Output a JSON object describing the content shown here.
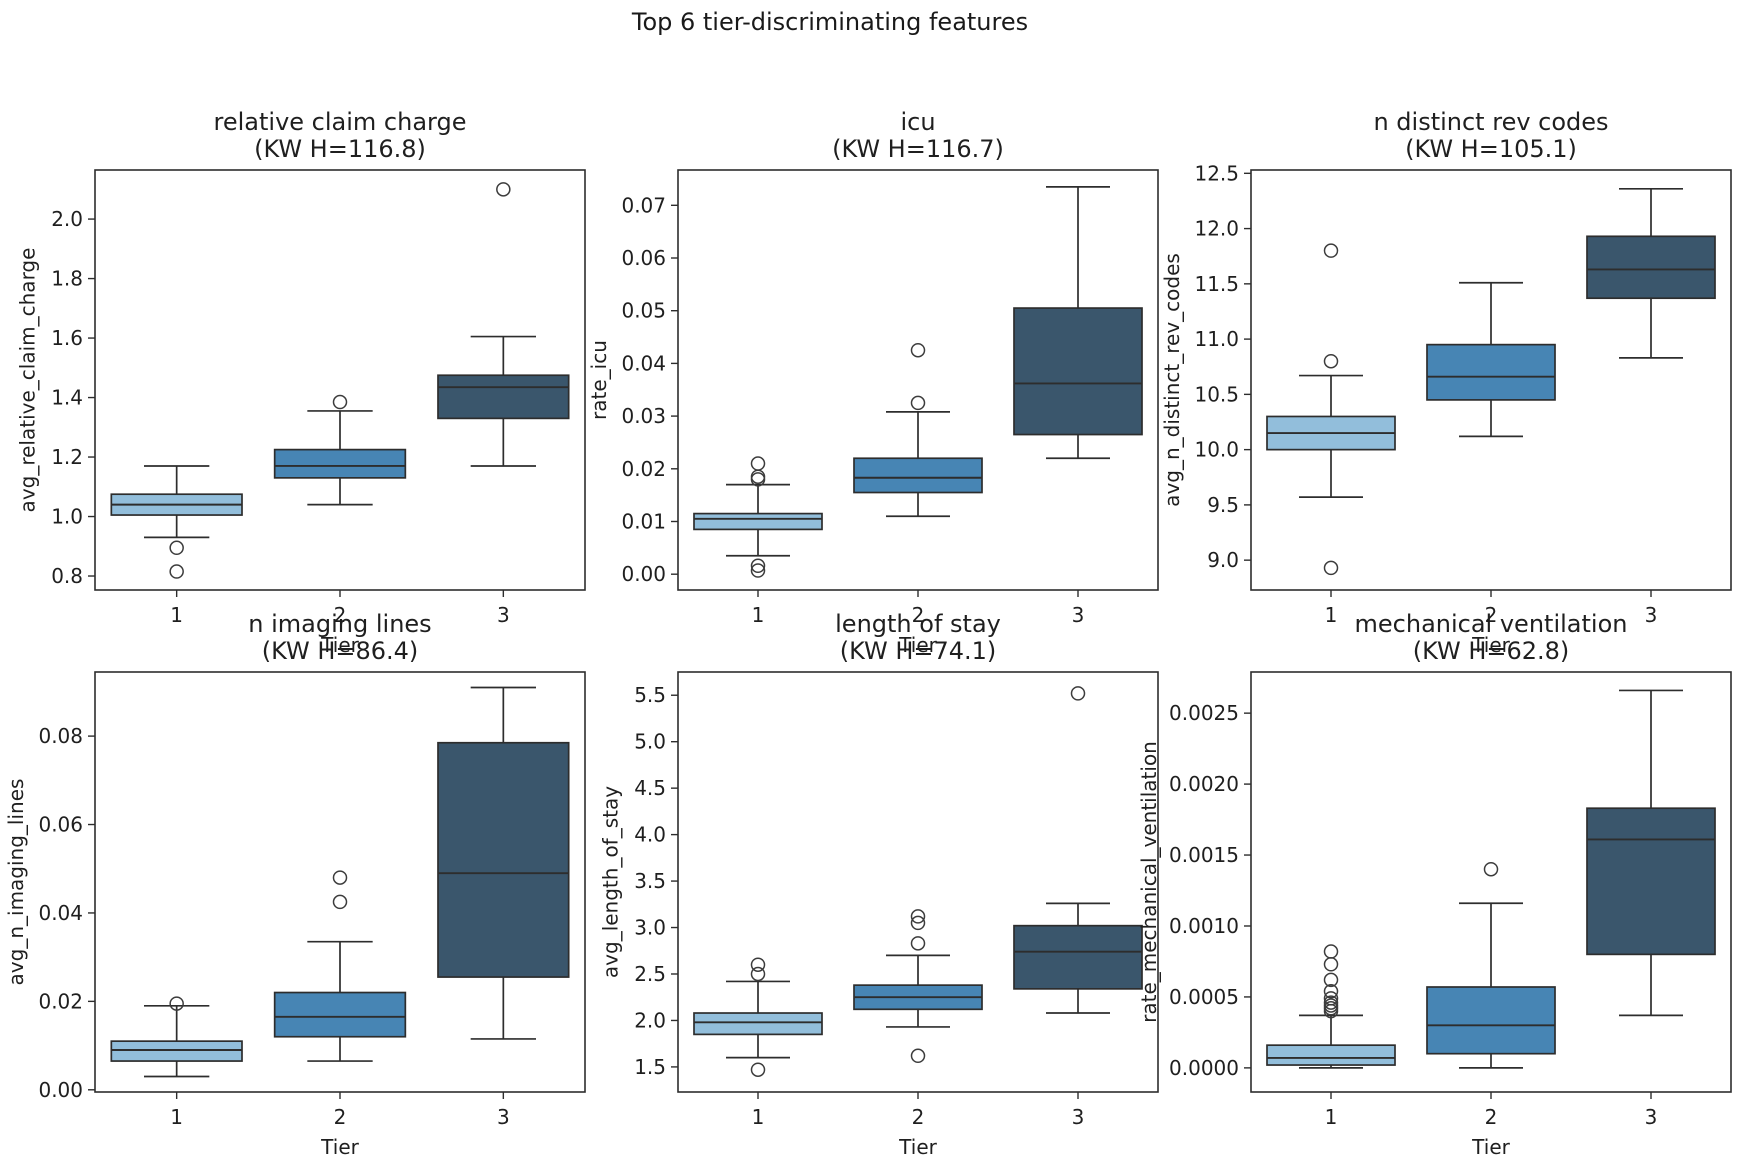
{
  "suptitle": "Top 6 tier-discriminating features",
  "palette": {
    "tier_colors": [
      "#92bedb",
      "#4785b4",
      "#3a566c"
    ],
    "line": "#2d2d2d",
    "flier": "#3c3c3c",
    "text": "#1f1f1f",
    "background": "#ffffff"
  },
  "chart_data": [
    {
      "type": "box",
      "title_line1": "relative claim charge",
      "title_line2": "(KW H=116.8)",
      "kw_h": 116.8,
      "xlabel": "Tier",
      "ylabel": "avg_relative_claim_charge",
      "categories": [
        "1",
        "2",
        "3"
      ],
      "ylim": [
        0.753,
        2.165
      ],
      "ytick_values": [
        0.8,
        1.0,
        1.2,
        1.4,
        1.6,
        1.8,
        2.0
      ],
      "ytick_labels": [
        "0.8",
        "1.0",
        "1.2",
        "1.4",
        "1.6",
        "1.8",
        "2.0"
      ],
      "boxes": [
        {
          "tier": "1",
          "whislo": 0.93,
          "q1": 1.005,
          "med": 1.04,
          "q3": 1.075,
          "whishi": 1.17,
          "fliers": [
            0.895,
            0.815
          ]
        },
        {
          "tier": "2",
          "whislo": 1.04,
          "q1": 1.13,
          "med": 1.17,
          "q3": 1.225,
          "whishi": 1.355,
          "fliers": [
            1.385
          ]
        },
        {
          "tier": "3",
          "whislo": 1.17,
          "q1": 1.33,
          "med": 1.435,
          "q3": 1.475,
          "whishi": 1.605,
          "fliers": [
            2.1
          ]
        }
      ]
    },
    {
      "type": "box",
      "title_line1": "icu",
      "title_line2": "(KW H=116.7)",
      "kw_h": 116.7,
      "xlabel": "Tier",
      "ylabel": "rate_icu",
      "categories": [
        "1",
        "2",
        "3"
      ],
      "ylim": [
        -0.003,
        0.0767
      ],
      "ytick_values": [
        0.0,
        0.01,
        0.02,
        0.03,
        0.04,
        0.05,
        0.06,
        0.07
      ],
      "ytick_labels": [
        "0.00",
        "0.01",
        "0.02",
        "0.03",
        "0.04",
        "0.05",
        "0.06",
        "0.07"
      ],
      "boxes": [
        {
          "tier": "1",
          "whislo": 0.0035,
          "q1": 0.0085,
          "med": 0.0105,
          "q3": 0.0115,
          "whishi": 0.017,
          "fliers": [
            0.021,
            0.0185,
            0.018,
            0.0016,
            0.0007
          ]
        },
        {
          "tier": "2",
          "whislo": 0.011,
          "q1": 0.0155,
          "med": 0.0183,
          "q3": 0.022,
          "whishi": 0.0308,
          "fliers": [
            0.0425,
            0.0325
          ]
        },
        {
          "tier": "3",
          "whislo": 0.022,
          "q1": 0.0265,
          "med": 0.0362,
          "q3": 0.0505,
          "whishi": 0.0735,
          "fliers": []
        }
      ]
    },
    {
      "type": "box",
      "title_line1": "n distinct rev codes",
      "title_line2": "(KW H=105.1)",
      "kw_h": 105.1,
      "xlabel": "Tier",
      "ylabel": "avg_n_distinct_rev_codes",
      "categories": [
        "1",
        "2",
        "3"
      ],
      "ylim": [
        8.73,
        12.53
      ],
      "ytick_values": [
        9.0,
        9.5,
        10.0,
        10.5,
        11.0,
        11.5,
        12.0,
        12.5
      ],
      "ytick_labels": [
        "9.0",
        "9.5",
        "10.0",
        "10.5",
        "11.0",
        "11.5",
        "12.0",
        "12.5"
      ],
      "boxes": [
        {
          "tier": "1",
          "whislo": 9.57,
          "q1": 10.0,
          "med": 10.15,
          "q3": 10.3,
          "whishi": 10.67,
          "fliers": [
            11.8,
            10.8,
            8.93
          ]
        },
        {
          "tier": "2",
          "whislo": 10.12,
          "q1": 10.45,
          "med": 10.66,
          "q3": 10.95,
          "whishi": 11.51,
          "fliers": []
        },
        {
          "tier": "3",
          "whislo": 10.83,
          "q1": 11.37,
          "med": 11.63,
          "q3": 11.93,
          "whishi": 12.36,
          "fliers": []
        }
      ]
    },
    {
      "type": "box",
      "title_line1": "n imaging lines",
      "title_line2": "(KW H=86.4)",
      "kw_h": 86.4,
      "xlabel": "Tier",
      "ylabel": "avg_n_imaging_lines",
      "categories": [
        "1",
        "2",
        "3"
      ],
      "ylim": [
        -0.0005,
        0.0945
      ],
      "ytick_values": [
        0.0,
        0.02,
        0.04,
        0.06,
        0.08
      ],
      "ytick_labels": [
        "0.00",
        "0.02",
        "0.04",
        "0.06",
        "0.08"
      ],
      "boxes": [
        {
          "tier": "1",
          "whislo": 0.003,
          "q1": 0.0065,
          "med": 0.009,
          "q3": 0.011,
          "whishi": 0.019,
          "fliers": [
            0.0195
          ]
        },
        {
          "tier": "2",
          "whislo": 0.0065,
          "q1": 0.012,
          "med": 0.0165,
          "q3": 0.022,
          "whishi": 0.0335,
          "fliers": [
            0.048,
            0.0425
          ]
        },
        {
          "tier": "3",
          "whislo": 0.0115,
          "q1": 0.0255,
          "med": 0.049,
          "q3": 0.0785,
          "whishi": 0.091,
          "fliers": []
        }
      ]
    },
    {
      "type": "box",
      "title_line1": "length of stay",
      "title_line2": "(KW H=74.1)",
      "kw_h": 74.1,
      "xlabel": "Tier",
      "ylabel": "avg_length_of_stay",
      "categories": [
        "1",
        "2",
        "3"
      ],
      "ylim": [
        1.23,
        5.75
      ],
      "ytick_values": [
        1.5,
        2.0,
        2.5,
        3.0,
        3.5,
        4.0,
        4.5,
        5.0,
        5.5
      ],
      "ytick_labels": [
        "1.5",
        "2.0",
        "2.5",
        "3.0",
        "3.5",
        "4.0",
        "4.5",
        "5.0",
        "5.5"
      ],
      "boxes": [
        {
          "tier": "1",
          "whislo": 1.6,
          "q1": 1.85,
          "med": 1.98,
          "q3": 2.08,
          "whishi": 2.42,
          "fliers": [
            2.6,
            2.5,
            1.47
          ]
        },
        {
          "tier": "2",
          "whislo": 1.93,
          "q1": 2.12,
          "med": 2.25,
          "q3": 2.38,
          "whishi": 2.7,
          "fliers": [
            3.12,
            3.05,
            2.83,
            1.62
          ]
        },
        {
          "tier": "3",
          "whislo": 2.08,
          "q1": 2.34,
          "med": 2.74,
          "q3": 3.02,
          "whishi": 3.26,
          "fliers": [
            5.52
          ]
        }
      ]
    },
    {
      "type": "box",
      "title_line1": "mechanical ventilation",
      "title_line2": "(KW H=62.8)",
      "kw_h": 62.8,
      "xlabel": "Tier",
      "ylabel": "rate_mechanical_ventilation",
      "categories": [
        "1",
        "2",
        "3"
      ],
      "ylim": [
        -0.00017,
        0.00279
      ],
      "ytick_values": [
        0.0,
        0.0005,
        0.001,
        0.0015,
        0.002,
        0.0025
      ],
      "ytick_labels": [
        "0.0000",
        "0.0005",
        "0.0010",
        "0.0015",
        "0.0020",
        "0.0025"
      ],
      "boxes": [
        {
          "tier": "1",
          "whislo": 0.0,
          "q1": 2e-05,
          "med": 7e-05,
          "q3": 0.00016,
          "whishi": 0.00037,
          "fliers": [
            0.00082,
            0.00073,
            0.00062,
            0.00054,
            0.00049,
            0.00046,
            0.00044,
            0.00042,
            0.0004
          ]
        },
        {
          "tier": "2",
          "whislo": 0.0,
          "q1": 0.0001,
          "med": 0.0003,
          "q3": 0.00057,
          "whishi": 0.00116,
          "fliers": [
            0.0014
          ]
        },
        {
          "tier": "3",
          "whislo": 0.00037,
          "q1": 0.0008,
          "med": 0.00161,
          "q3": 0.00183,
          "whishi": 0.00266,
          "fliers": []
        }
      ]
    }
  ]
}
